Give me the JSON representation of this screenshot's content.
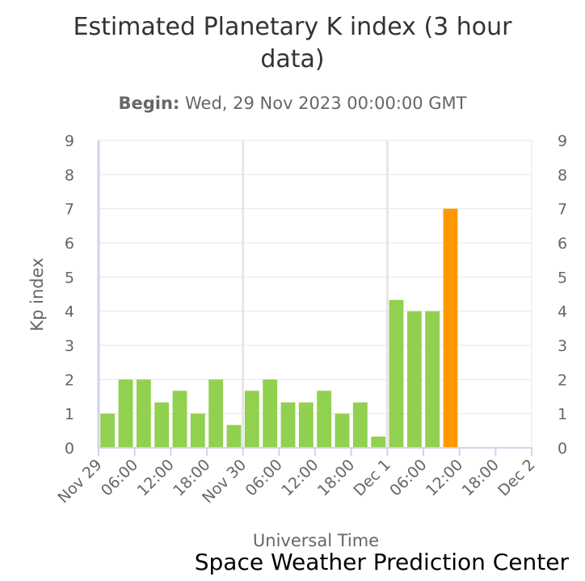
{
  "title_line1": "Estimated Planetary K index (3 hour",
  "title_line2": "data)",
  "subtitle_label": "Begin:",
  "subtitle_value": "Wed, 29 Nov 2023 00:00:00 GMT",
  "credit": "Space Weather Prediction Center",
  "chart_data": {
    "type": "bar",
    "title": "Estimated Planetary K index (3 hour data)",
    "xlabel": "Universal Time",
    "ylabel": "Kp index",
    "ylim": [
      0,
      9
    ],
    "yticks": [
      "0",
      "1",
      "2",
      "3",
      "4",
      "5",
      "6",
      "7",
      "8",
      "9"
    ],
    "xticks": [
      "Nov 29",
      "06:00",
      "12:00",
      "18:00",
      "Nov 30",
      "06:00",
      "12:00",
      "18:00",
      "Dec 1",
      "06:00",
      "12:00",
      "18:00",
      "Dec 2"
    ],
    "x_range_hours": [
      0,
      72
    ],
    "bar_interval_hours": 3,
    "colors": {
      "normal": "#92d050",
      "storm": "#ff9900",
      "grid": "#e6e6e6",
      "axis": "#ccd6eb"
    },
    "values": [
      1,
      2,
      2,
      1.33,
      1.67,
      1,
      2,
      0.67,
      1.67,
      2,
      1.33,
      1.33,
      1.67,
      1,
      1.33,
      0.33,
      4.33,
      4,
      4,
      7
    ],
    "storm_threshold": 5
  }
}
